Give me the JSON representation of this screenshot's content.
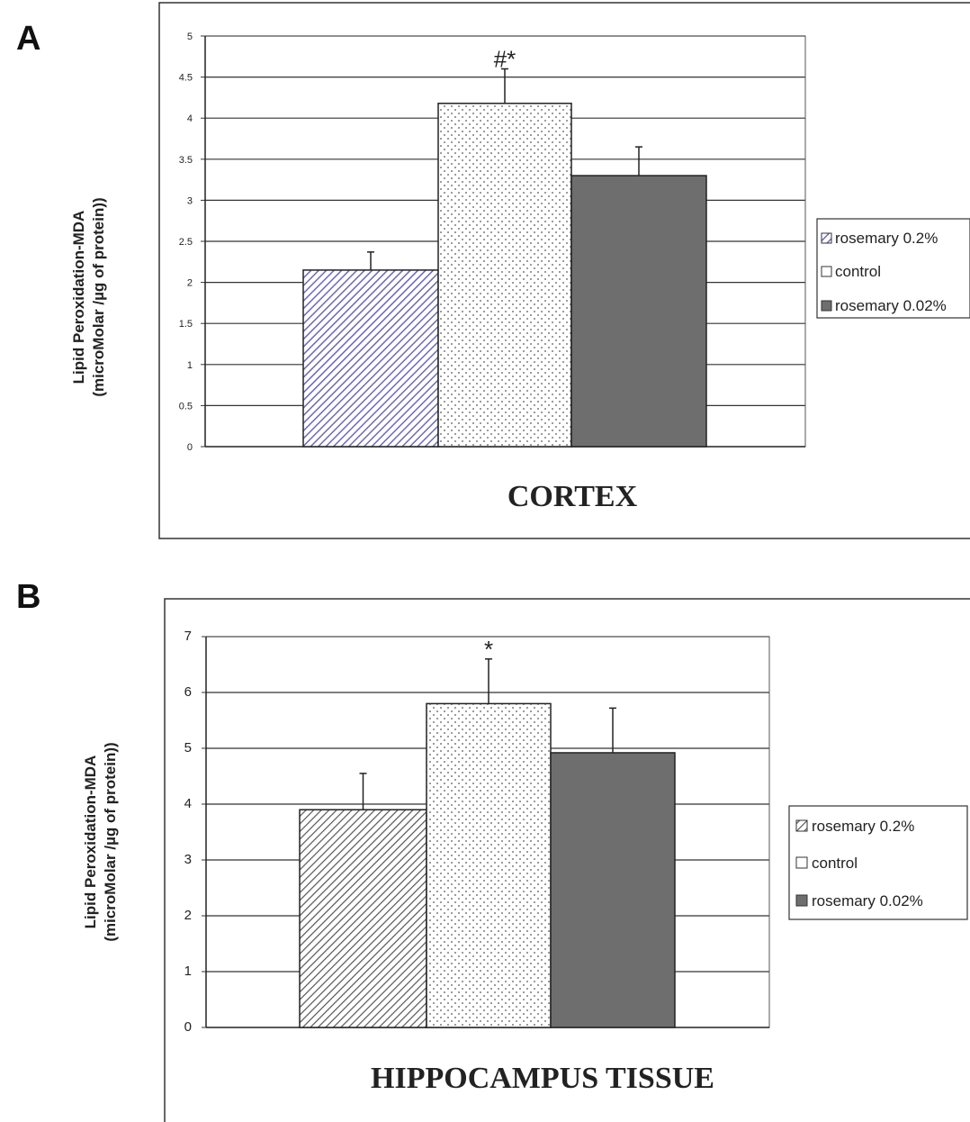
{
  "colors": {
    "rosemary_02_pattern_A": "#6a6ab8",
    "rosemary_02_pattern_B": "#555555",
    "control_dots": "#555555",
    "rosemary_002": "#6e6e6e",
    "gridline": "#333333"
  },
  "chart_data": [
    {
      "panel": "A",
      "type": "bar",
      "title": "",
      "xlabel": "CORTEX",
      "ylabel": [
        "Lipid Peroxidation-MDA",
        "(microMolar /µg of protein))"
      ],
      "ylim": [
        0,
        5
      ],
      "yticks": [
        0,
        0.5,
        1,
        1.5,
        2,
        2.5,
        3,
        3.5,
        4,
        4.5,
        5
      ],
      "ytick_labels": [
        "0",
        "0.5",
        "1",
        "1.5",
        "2",
        "2.5",
        "3",
        "3.5",
        "4",
        "4.5",
        "5"
      ],
      "grid": true,
      "legend_position": "right",
      "series": [
        {
          "name": "rosemary 0.2%",
          "value": 2.15,
          "error": 0.22,
          "annotation": ""
        },
        {
          "name": "control",
          "value": 4.18,
          "error": 0.42,
          "annotation": "#*"
        },
        {
          "name": "rosemary 0.02%",
          "value": 3.3,
          "error": 0.35,
          "annotation": ""
        }
      ]
    },
    {
      "panel": "B",
      "type": "bar",
      "title": "",
      "xlabel": "HIPPOCAMPUS TISSUE",
      "ylabel": [
        "Lipid Peroxidation-MDA",
        "(microMolar /µg of protein))"
      ],
      "ylim": [
        0,
        7
      ],
      "yticks": [
        0,
        1,
        2,
        3,
        4,
        5,
        6,
        7
      ],
      "ytick_labels": [
        "0",
        "1",
        "2",
        "3",
        "4",
        "5",
        "6",
        "7"
      ],
      "grid": true,
      "legend_position": "right",
      "series": [
        {
          "name": "rosemary 0.2%",
          "value": 3.9,
          "error": 0.65,
          "annotation": ""
        },
        {
          "name": "control",
          "value": 5.8,
          "error": 0.8,
          "annotation": "*"
        },
        {
          "name": "rosemary 0.02%",
          "value": 4.92,
          "error": 0.8,
          "annotation": ""
        }
      ]
    }
  ]
}
